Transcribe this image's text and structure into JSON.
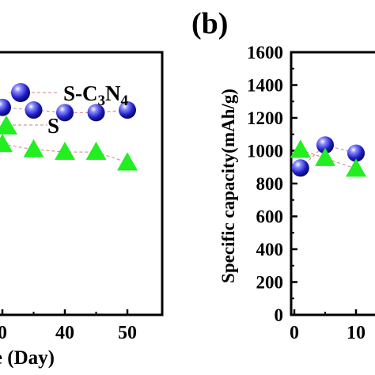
{
  "panel_label": "(b)",
  "chart_data": [
    {
      "type": "line",
      "panel": "a",
      "title": "",
      "xlabel": "ne (Day)",
      "ylabel": "",
      "x_ticks": [
        0,
        40,
        50
      ],
      "x_tick_labels": [
        "0",
        "40",
        "50"
      ],
      "x_tick_label_display": [
        "0",
        "40",
        "50"
      ],
      "legend": {
        "placement": "upper-right"
      },
      "series": [
        {
          "name": "S-C3N4",
          "marker": "sphere",
          "color": "#2323c8",
          "x": [
            30,
            35,
            40,
            45,
            50
          ],
          "y": [
            0.79,
            0.78,
            0.77,
            0.77,
            0.78
          ]
        },
        {
          "name": "S",
          "marker": "triangle",
          "color": "#22ee22",
          "x": [
            30,
            35,
            40,
            45,
            50
          ],
          "y": [
            0.65,
            0.63,
            0.62,
            0.62,
            0.58
          ]
        }
      ]
    },
    {
      "type": "line",
      "panel": "b",
      "title": "",
      "xlabel": "",
      "ylabel": "Specific capacity(mAh/g)",
      "ylim": [
        0,
        1600
      ],
      "y_ticks": [
        0,
        200,
        400,
        600,
        800,
        1000,
        1200,
        1400,
        1600
      ],
      "x_ticks": [
        0,
        10
      ],
      "series": [
        {
          "name": "S-C3N4",
          "marker": "sphere",
          "color": "#2323c8",
          "x": [
            1,
            5,
            10
          ],
          "y": [
            895,
            1035,
            985
          ]
        },
        {
          "name": "S",
          "marker": "triangle",
          "color": "#22ee22",
          "x": [
            1,
            5,
            10
          ],
          "y": [
            1005,
            955,
            890
          ]
        }
      ]
    }
  ]
}
